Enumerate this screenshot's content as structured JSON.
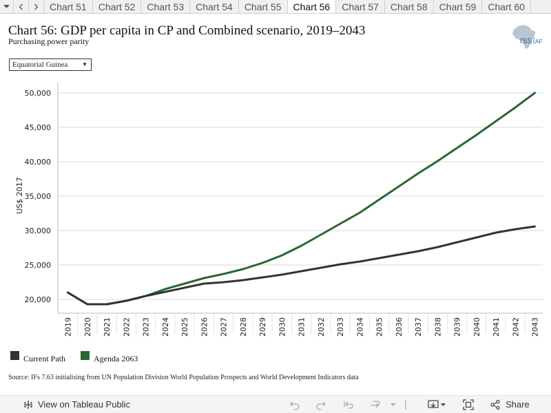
{
  "tabs": [
    "Chart 51",
    "Chart 52",
    "Chart 53",
    "Chart 54",
    "Chart 55",
    "Chart 56",
    "Chart 57",
    "Chart 58",
    "Chart 59",
    "Chart 60"
  ],
  "active_tab": 5,
  "header": {
    "title": "Chart 56: GDP per capita in CP and Combined scenario, 2019–2043",
    "subtitle": "Purchasing power parity",
    "logo_text": "ISS",
    "logo_text_2": "AF"
  },
  "filter": {
    "selected": "Equatorial Guinea"
  },
  "legend": [
    {
      "label": "Current Path",
      "color": "#333333"
    },
    {
      "label": "Agenda 2063",
      "color": "#2a6632"
    }
  ],
  "source": "Source: IFs 7.63 initialising from UN Population Division World Population Prospects and World Development Indicators data",
  "footer": {
    "view_label": "View on Tableau Public",
    "share_label": "Share"
  },
  "chart_data": {
    "type": "line",
    "title": "Chart 56: GDP per capita in CP and Combined scenario, 2019–2043",
    "ylabel": "US$ 2017",
    "xlabel": "",
    "ylim": [
      18000,
      51500
    ],
    "yticks": [
      20000,
      25000,
      30000,
      35000,
      40000,
      45000,
      50000
    ],
    "ytick_labels": [
      "20,000",
      "25,000",
      "30,000",
      "35,000",
      "40,000",
      "45,000",
      "50,000"
    ],
    "x": [
      "2019",
      "2020",
      "2021",
      "2022",
      "2023",
      "2024",
      "2025",
      "2026",
      "2027",
      "2028",
      "2029",
      "2030",
      "2031",
      "2032",
      "2033",
      "2034",
      "2035",
      "2036",
      "2037",
      "2038",
      "2039",
      "2040",
      "2041",
      "2042",
      "2043"
    ],
    "grid": true,
    "series": [
      {
        "name": "Current Path",
        "color": "#333333",
        "values": [
          21000,
          19300,
          19300,
          19800,
          20500,
          21100,
          21700,
          22300,
          22500,
          22800,
          23200,
          23600,
          24100,
          24600,
          25100,
          25500,
          26000,
          26500,
          27000,
          27600,
          28300,
          29000,
          29700,
          30200,
          30600
        ]
      },
      {
        "name": "Agenda 2063",
        "color": "#2a6632",
        "values": [
          21000,
          19300,
          19300,
          19800,
          20500,
          21500,
          22300,
          23100,
          23700,
          24400,
          25300,
          26400,
          27800,
          29400,
          31000,
          32600,
          34500,
          36400,
          38300,
          40100,
          42000,
          43900,
          45900,
          47900,
          50000
        ]
      }
    ]
  }
}
